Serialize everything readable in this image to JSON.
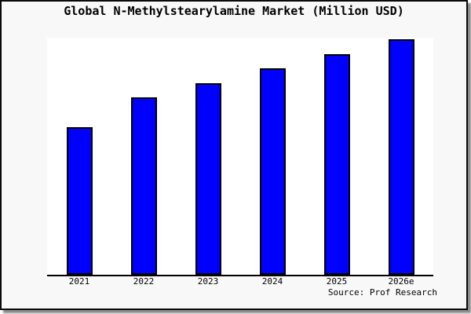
{
  "figure": {
    "background_color": "#f8f8f8",
    "plot_background_color": "#ffffff",
    "border_color": "#000000",
    "shadow_color": "#777777",
    "text_color": "#000000"
  },
  "chart_data": {
    "type": "bar",
    "title": "Global N-Methylstearylamine Market (Million USD)",
    "categories": [
      "2021",
      "2022",
      "2023",
      "2024",
      "2025",
      "2026e"
    ],
    "values": [
      62.7,
      75.2,
      81.3,
      87.6,
      93.7,
      100
    ],
    "ylim": [
      0,
      100.7
    ],
    "xlabel": "",
    "ylabel": "",
    "grid": false,
    "legend": false,
    "y_axis_labels_shown": false,
    "values_note": "relative scale estimated from bar heights; no y-axis tick labels are visible",
    "bar_color": "#0000ff",
    "bar_border_color": "#000000",
    "source_note": "Source: Prof Research"
  }
}
